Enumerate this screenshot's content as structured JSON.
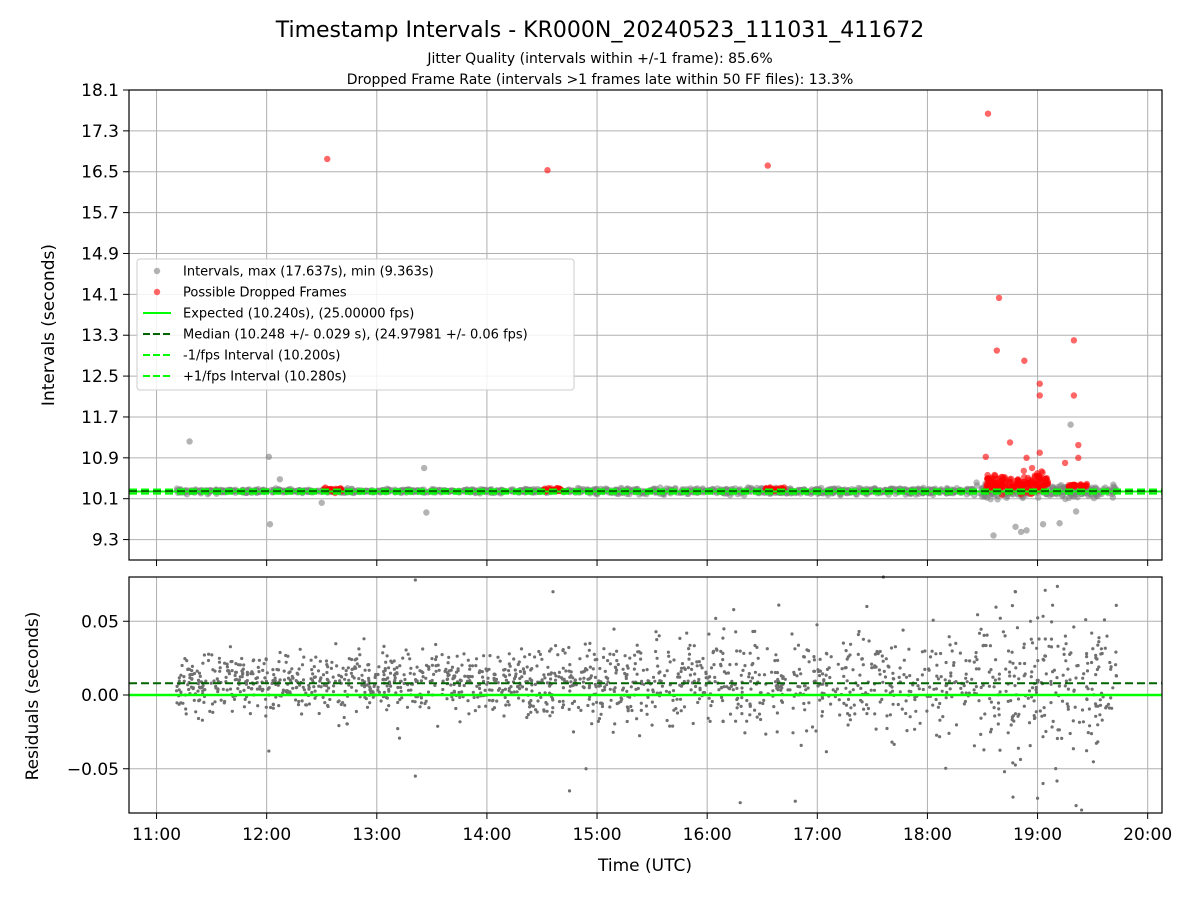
{
  "figure": {
    "title": "Timestamp Intervals - KR000N_20240523_111031_411672",
    "subtitle_1": "Jitter Quality (intervals within +/-1 frame): 85.6%",
    "subtitle_2": "Dropped Frame Rate (intervals >1 frames late within 50 FF files): 13.3%"
  },
  "chart_data": [
    {
      "type": "scatter",
      "ylabel": "Intervals (seconds)",
      "xlabel": "",
      "ylim": [
        8.9,
        18.1
      ],
      "xlim": [
        10.75,
        20.13
      ],
      "y_ticks": [
        9.3,
        10.1,
        10.9,
        11.7,
        12.5,
        13.3,
        14.1,
        14.9,
        15.7,
        16.5,
        17.3,
        18.1
      ],
      "y_tick_labels": [
        "9.3",
        "10.1",
        "10.9",
        "11.7",
        "12.5",
        "13.3",
        "14.1",
        "14.9",
        "15.7",
        "16.5",
        "17.3",
        "18.1"
      ],
      "grid": true,
      "legend_position": "center-left",
      "legend": [
        {
          "label": "Intervals, max (17.637s), min (9.363s)",
          "kind": "marker",
          "color": "#808080"
        },
        {
          "label": "Possible Dropped Frames",
          "kind": "marker",
          "color": "#ff0000"
        },
        {
          "label": "Expected (10.240s), (25.00000 fps)",
          "kind": "solid",
          "color": "#00ff00"
        },
        {
          "label": "Median (10.248 +/- 0.029 s), (24.97981 +/- 0.06 fps)",
          "kind": "dashed",
          "color": "#006400"
        },
        {
          "label": "-1/fps Interval (10.200s)",
          "kind": "dashed",
          "color": "#00ff00"
        },
        {
          "label": "+1/fps Interval (10.280s)",
          "kind": "dashed",
          "color": "#00ff00"
        }
      ],
      "reference_lines": {
        "expected": 10.24,
        "median": 10.248,
        "minus_one": 10.2,
        "plus_one": 10.28
      },
      "intervals_outliers": [
        {
          "x": 11.3,
          "y": 11.22
        },
        {
          "x": 12.02,
          "y": 10.92
        },
        {
          "x": 12.03,
          "y": 9.6
        },
        {
          "x": 12.12,
          "y": 10.48
        },
        {
          "x": 12.5,
          "y": 10.02
        },
        {
          "x": 13.43,
          "y": 10.7
        },
        {
          "x": 13.45,
          "y": 9.83
        },
        {
          "x": 18.6,
          "y": 9.38
        },
        {
          "x": 18.8,
          "y": 9.55
        },
        {
          "x": 18.85,
          "y": 9.45
        },
        {
          "x": 18.9,
          "y": 9.48
        },
        {
          "x": 19.05,
          "y": 9.6
        },
        {
          "x": 19.2,
          "y": 9.62
        },
        {
          "x": 19.3,
          "y": 11.55
        },
        {
          "x": 19.35,
          "y": 9.85
        }
      ],
      "dropped_frames_outliers": [
        {
          "x": 12.55,
          "y": 16.75
        },
        {
          "x": 14.55,
          "y": 16.53
        },
        {
          "x": 16.55,
          "y": 16.62
        },
        {
          "x": 18.55,
          "y": 17.637
        },
        {
          "x": 18.65,
          "y": 14.03
        },
        {
          "x": 18.63,
          "y": 13.0
        },
        {
          "x": 18.88,
          "y": 12.8
        },
        {
          "x": 19.02,
          "y": 12.35
        },
        {
          "x": 19.02,
          "y": 12.12
        },
        {
          "x": 19.33,
          "y": 13.2
        },
        {
          "x": 19.33,
          "y": 12.12
        },
        {
          "x": 18.75,
          "y": 11.2
        },
        {
          "x": 19.37,
          "y": 11.15
        },
        {
          "x": 19.02,
          "y": 11.0
        },
        {
          "x": 19.37,
          "y": 10.9
        },
        {
          "x": 18.53,
          "y": 10.92
        },
        {
          "x": 19.25,
          "y": 10.8
        },
        {
          "x": 18.9,
          "y": 10.9
        },
        {
          "x": 18.95,
          "y": 10.7
        }
      ],
      "dropped_frame_clusters": [
        {
          "x_start": 12.52,
          "x_end": 12.68,
          "y": 10.27
        },
        {
          "x_start": 14.52,
          "x_end": 14.68,
          "y": 10.27
        },
        {
          "x_start": 16.53,
          "x_end": 16.7,
          "y": 10.28
        },
        {
          "x_start": 18.53,
          "x_end": 19.1,
          "y": 10.4
        },
        {
          "x_start": 19.28,
          "x_end": 19.45,
          "y": 10.35
        }
      ]
    },
    {
      "type": "scatter",
      "ylabel": "Residuals (seconds)",
      "xlabel": "Time (UTC)",
      "ylim": [
        -0.08,
        0.08
      ],
      "xlim": [
        10.75,
        20.13
      ],
      "y_ticks": [
        -0.05,
        0.0,
        0.05
      ],
      "y_tick_labels": [
        "−0.05",
        "0.00",
        "0.05"
      ],
      "x_ticks": [
        11,
        12,
        13,
        14,
        15,
        16,
        17,
        18,
        19,
        20
      ],
      "x_tick_labels": [
        "11:00",
        "12:00",
        "13:00",
        "14:00",
        "15:00",
        "16:00",
        "17:00",
        "18:00",
        "19:00",
        "20:00"
      ],
      "grid": true,
      "reference_lines": {
        "zero": 0.0,
        "median_offset": 0.008
      },
      "residual_x_range": [
        11.18,
        19.72
      ],
      "residual_outliers": [
        {
          "x": 12.02,
          "y": -0.038
        },
        {
          "x": 13.35,
          "y": 0.078
        },
        {
          "x": 13.35,
          "y": -0.055
        },
        {
          "x": 14.6,
          "y": 0.07
        },
        {
          "x": 14.75,
          "y": -0.065
        },
        {
          "x": 14.9,
          "y": -0.05
        },
        {
          "x": 16.3,
          "y": -0.073
        },
        {
          "x": 16.8,
          "y": -0.072
        },
        {
          "x": 17.45,
          "y": 0.06
        },
        {
          "x": 17.6,
          "y": 0.08
        },
        {
          "x": 18.7,
          "y": -0.052
        },
        {
          "x": 18.8,
          "y": 0.07
        },
        {
          "x": 19.0,
          "y": -0.07
        },
        {
          "x": 19.35,
          "y": -0.075
        },
        {
          "x": 19.4,
          "y": -0.078
        },
        {
          "x": 19.05,
          "y": -0.06
        }
      ]
    }
  ]
}
